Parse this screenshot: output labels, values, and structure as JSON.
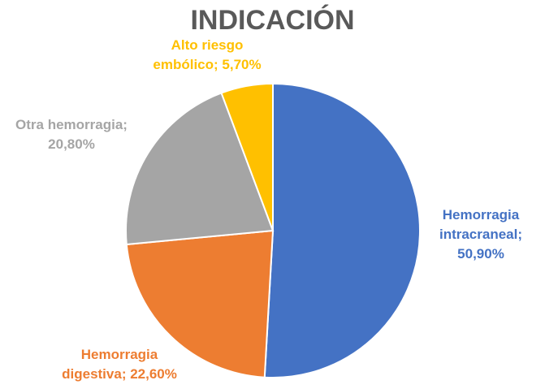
{
  "chart_data": {
    "type": "pie",
    "title": "INDICACIÓN",
    "slices": [
      {
        "name": "Hemorragia intracraneal",
        "value": 50.9,
        "color": "#4472C4",
        "label_lines": [
          "Hemorragia",
          "intracraneal;",
          "50,90%"
        ]
      },
      {
        "name": "Hemorragia digestiva",
        "value": 22.6,
        "color": "#ED7D31",
        "label_lines": [
          "Hemorragia",
          "digestiva; 22,60%"
        ]
      },
      {
        "name": "Otra hemorragia",
        "value": 20.8,
        "color": "#A5A5A5",
        "label_lines": [
          "Otra hemorragia;",
          "20,80%"
        ]
      },
      {
        "name": "Alto riesgo embólico",
        "value": 5.7,
        "color": "#FFC000",
        "label_lines": [
          "Alto riesgo",
          "embólico; 5,70%"
        ]
      }
    ]
  }
}
